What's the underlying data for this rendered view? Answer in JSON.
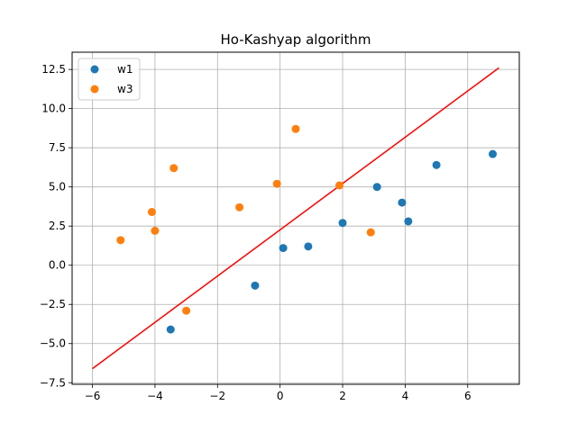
{
  "chart_data": {
    "type": "scatter",
    "title": "Ho-Kashyap algorithm",
    "xlabel": "",
    "ylabel": "",
    "xlim": [
      -6.65,
      7.65
    ],
    "ylim": [
      -7.6,
      13.6
    ],
    "xticks": [
      -6,
      -4,
      -2,
      0,
      2,
      4,
      6
    ],
    "yticks": [
      -7.5,
      -5.0,
      -2.5,
      0.0,
      2.5,
      5.0,
      7.5,
      10.0,
      12.5
    ],
    "xtick_labels": [
      "−6",
      "−4",
      "−2",
      "0",
      "2",
      "4",
      "6"
    ],
    "ytick_labels": [
      "−7.5",
      "−5.0",
      "−2.5",
      "0.0",
      "2.5",
      "5.0",
      "7.5",
      "10.0",
      "12.5"
    ],
    "grid": true,
    "legend_placement": "top-left",
    "series": [
      {
        "name": "w1",
        "color": "#1f77b4",
        "points": [
          [
            0.1,
            1.1
          ],
          [
            6.8,
            7.1
          ],
          [
            -3.5,
            -4.1
          ],
          [
            2.0,
            2.7
          ],
          [
            4.1,
            2.8
          ],
          [
            3.1,
            5.0
          ],
          [
            -0.8,
            -1.3
          ],
          [
            0.9,
            1.2
          ],
          [
            5.0,
            6.4
          ],
          [
            3.9,
            4.0
          ]
        ]
      },
      {
        "name": "w3",
        "color": "#ff7f0e",
        "points": [
          [
            -3.0,
            -2.9
          ],
          [
            0.5,
            8.7
          ],
          [
            2.9,
            2.1
          ],
          [
            -0.1,
            5.2
          ],
          [
            -4.0,
            2.2
          ],
          [
            -1.3,
            3.7
          ],
          [
            -3.4,
            6.2
          ],
          [
            -4.1,
            3.4
          ],
          [
            -5.1,
            1.6
          ],
          [
            1.9,
            5.1
          ]
        ]
      }
    ],
    "decision_line": {
      "color": "#ff0000",
      "x": [
        -6.0,
        7.0
      ],
      "y": [
        -6.6,
        12.6
      ]
    }
  }
}
